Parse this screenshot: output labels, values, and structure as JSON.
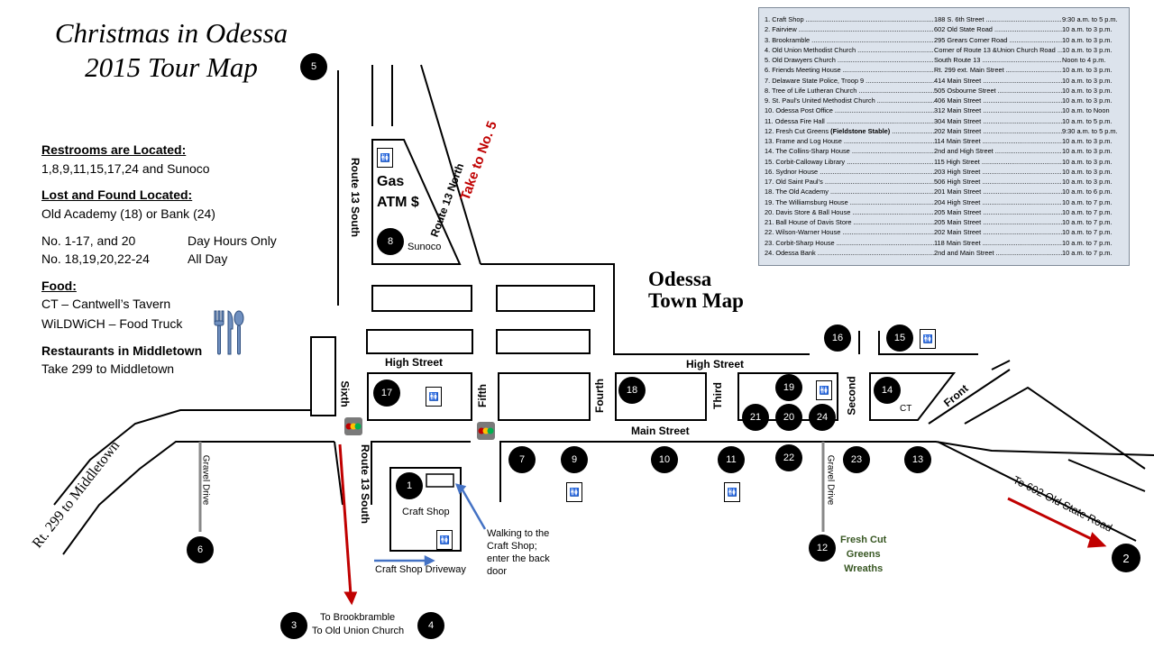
{
  "title": {
    "line1": "Christmas in Odessa",
    "line2": "2015 Tour Map"
  },
  "town_map_title": {
    "line1": "Odessa",
    "line2": "Town Map"
  },
  "info": {
    "restrooms_heading": "Restrooms are Located:",
    "restrooms_value": "1,8,9,11,15,17,24 and Sunoco",
    "lost_found_heading": "Lost and Found Located:",
    "lost_found_value": "Old Academy (18) or Bank (24)",
    "hours": [
      {
        "sites": "No. 1-17, and 20",
        "schedule": "Day Hours Only"
      },
      {
        "sites": "No. 18,19,20,22-24",
        "schedule": "All Day"
      }
    ],
    "food_heading": "Food:",
    "food_items": [
      "CT – Cantwell’s Tavern",
      "WiLDWiCH – Food Truck"
    ],
    "restaurants_heading": "Restaurants in Middletown",
    "restaurants_value": "Take 299 to Middletown"
  },
  "legend": [
    {
      "num": "1.",
      "name": "Craft Shop",
      "address": "188 S. 6th Street",
      "hours": "9:30 a.m. to 5 p.m."
    },
    {
      "num": "2.",
      "name": "Fairview",
      "address": "602 Old State Road",
      "hours": "10 a.m. to 3 p.m."
    },
    {
      "num": "3.",
      "name": "Brookramble",
      "address": "295 Grears Corner Road",
      "hours": "10 a.m. to 3 p.m."
    },
    {
      "num": "4.",
      "name": "Old Union Methodist Church",
      "address": "Corner of Route 13 &Union Church Road",
      "hours": "10 a.m. to 3 p.m."
    },
    {
      "num": "5.",
      "name": "Old Drawyers Church",
      "address": "South Route 13",
      "hours": "Noon to 4 p.m."
    },
    {
      "num": "6.",
      "name": "Friends Meeting House",
      "address": "Rt. 299 ext. Main Street",
      "hours": "10 a.m. to 3 p.m."
    },
    {
      "num": "7.",
      "name": "Delaware State Police, Troop 9",
      "address": "414 Main Street",
      "hours": "10 a.m. to 3 p.m."
    },
    {
      "num": "8.",
      "name": "Tree of Life Lutheran Church",
      "address": "505 Osbourne Street",
      "hours": "10 a.m. to 3 p.m."
    },
    {
      "num": "9.",
      "name": "St. Paul’s United Methodist Church",
      "address": "406 Main Street",
      "hours": "10 a.m. to 3 p.m."
    },
    {
      "num": "10.",
      "name": "Odessa Post Office",
      "address": "312 Main Street",
      "hours": "10 a.m. to Noon"
    },
    {
      "num": "11.",
      "name": "Odessa Fire Hall",
      "address": "304 Main Street",
      "hours": "10 a.m. to 5 p.m."
    },
    {
      "num": "12.",
      "name": "Fresh Cut Greens",
      "name_extra": "(Fieldstone Stable)",
      "address": "202 Main Street",
      "hours": "9:30 a.m. to 5 p.m."
    },
    {
      "num": "13.",
      "name": "Frame and Log House",
      "address": "114 Main Street",
      "hours": "10 a.m. to 3 p.m."
    },
    {
      "num": "14.",
      "name": "The Collins-Sharp House",
      "address": "2nd and High Street",
      "hours": "10 a.m. to 3 p.m."
    },
    {
      "num": "15.",
      "name": "Corbit-Calloway Library",
      "address": "115 High Street",
      "hours": "10 a.m. to 3 p.m."
    },
    {
      "num": "16.",
      "name": "Sydnor House",
      "address": "203 High Street",
      "hours": "10 a.m. to 3 p.m."
    },
    {
      "num": "17.",
      "name": "Old Saint Paul’s",
      "address": "506 High Street",
      "hours": "10 a.m. to 3 p.m."
    },
    {
      "num": "18.",
      "name": "The Old Academy",
      "address": "201 Main Street",
      "hours": "10 a.m. to 6 p.m."
    },
    {
      "num": "19.",
      "name": "The Williamsburg House",
      "address": "204 High Street",
      "hours": "10 a.m. to 7 p.m."
    },
    {
      "num": "20.",
      "name": "Davis Store & Ball House",
      "address": "205 Main Street",
      "hours": "10 a.m. to 7 p.m."
    },
    {
      "num": "21.",
      "name": "Ball House of Davis Store",
      "address": "205 Main Street",
      "hours": "10 a.m. to 7 p.m."
    },
    {
      "num": "22.",
      "name": "Wilson-Warner House",
      "address": "202 Main Street",
      "hours": "10 a.m. to 7 p.m."
    },
    {
      "num": "23.",
      "name": "Corbit-Sharp House",
      "address": "118 Main Street",
      "hours": "10 a.m. to 7 p.m."
    },
    {
      "num": "24.",
      "name": "Odessa Bank",
      "address": "2nd and Main Street",
      "hours": "10 a.m. to 7 p.m."
    }
  ],
  "streets": {
    "high_street": "High Street",
    "main_street": "Main Street",
    "route13_south": "Route 13 South",
    "route13_north": "Route 13 North",
    "take_to_5": "Take to No. 5",
    "sixth": "Sixth",
    "fifth": "Fifth",
    "fourth": "Fourth",
    "third": "Third",
    "second": "Second",
    "front": "Front",
    "gravel_drive": "Gravel Drive",
    "rt299": "Rt. 299 to Middletown",
    "to_602": "To 602 Old State Road"
  },
  "labels": {
    "gas": "Gas",
    "atm": "ATM $",
    "sunoco": "Sunoco",
    "craft_shop": "Craft Shop",
    "ct": "CT",
    "walking_note": [
      "Walking to the",
      "Craft Shop;",
      "enter the back",
      "door"
    ],
    "driveway": "Craft Shop Driveway",
    "to_brookramble": "To Brookbramble",
    "to_old_union": "To Old Union Church",
    "greens": [
      "Fresh Cut",
      "Greens",
      "Wreaths"
    ]
  },
  "markers": [
    "1",
    "2",
    "3",
    "4",
    "5",
    "6",
    "7",
    "8",
    "9",
    "10",
    "11",
    "12",
    "13",
    "14",
    "15",
    "16",
    "17",
    "18",
    "19",
    "20",
    "21",
    "22",
    "23",
    "24"
  ],
  "colors": {
    "arrow_red": "#c00000",
    "arrow_blue": "#4472c4",
    "take_text": "#c00000",
    "greens_text": "#385723",
    "legend_bg": "#dce3ec",
    "signal_yellow": "#ffc000"
  },
  "icons": {
    "restroom": "restroom-icon",
    "cutlery": "cutlery-icon",
    "traffic_light": "traffic-light-icon"
  }
}
